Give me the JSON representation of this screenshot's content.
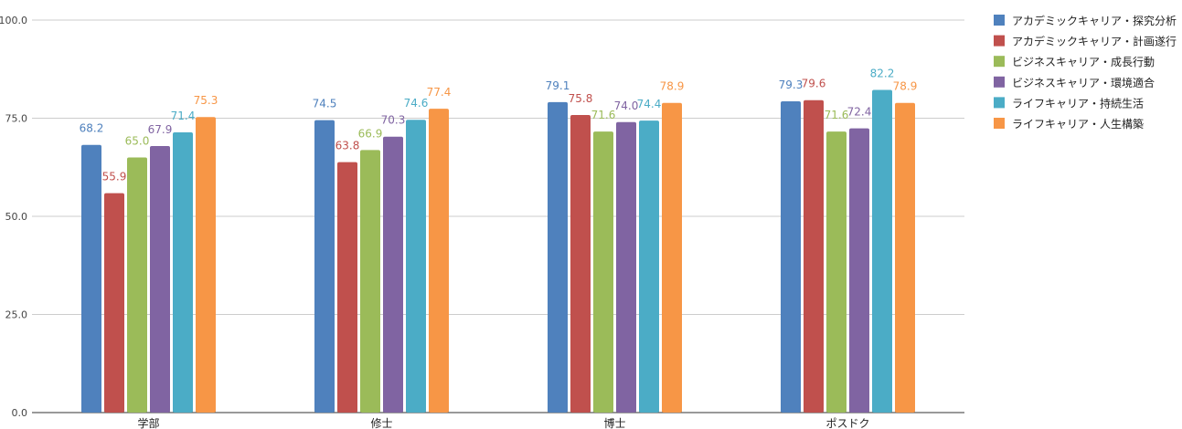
{
  "chart_data": {
    "type": "bar",
    "title": "",
    "xlabel": "",
    "ylabel": "",
    "ylim": [
      0,
      100
    ],
    "yticks": [
      0,
      25,
      50,
      75,
      100
    ],
    "ytick_labels": [
      "0.0",
      "25.0",
      "50.0",
      "75.0",
      "100.0"
    ],
    "grid": true,
    "legend_position": "right",
    "categories": [
      "学部",
      "修士",
      "博士",
      "ポスドク"
    ],
    "series": [
      {
        "name": "アカデミックキャリア・探究分析",
        "color": "#4f81bd",
        "values": [
          68.2,
          74.5,
          79.1,
          79.3
        ],
        "labels": [
          "68.2",
          "74.5",
          "79.1",
          "79.3"
        ]
      },
      {
        "name": "アカデミックキャリア・計画遂行",
        "color": "#c0504d",
        "values": [
          55.9,
          63.8,
          75.8,
          79.6
        ],
        "labels": [
          "55.9",
          "63.8",
          "75.8",
          "79.6"
        ]
      },
      {
        "name": "ビジネスキャリア・成長行動",
        "color": "#9bbb59",
        "values": [
          65.0,
          66.9,
          71.6,
          71.6
        ],
        "labels": [
          "65.0",
          "66.9",
          "71.6",
          "71.6"
        ]
      },
      {
        "name": "ビジネスキャリア・環境適合",
        "color": "#8064a2",
        "values": [
          67.9,
          70.3,
          74.0,
          72.4
        ],
        "labels": [
          "67.9",
          "70.3",
          "74.0",
          "72.4"
        ]
      },
      {
        "name": "ライフキャリア・持続生活",
        "color": "#4bacc6",
        "values": [
          71.4,
          74.6,
          74.4,
          82.2
        ],
        "labels": [
          "71.4",
          "74.6",
          "74.4",
          "82.2"
        ]
      },
      {
        "name": "ライフキャリア・人生構築",
        "color": "#f79646",
        "values": [
          75.3,
          77.4,
          78.9,
          78.9
        ],
        "labels": [
          "75.3",
          "77.4",
          "78.9",
          "78.9"
        ]
      }
    ]
  }
}
